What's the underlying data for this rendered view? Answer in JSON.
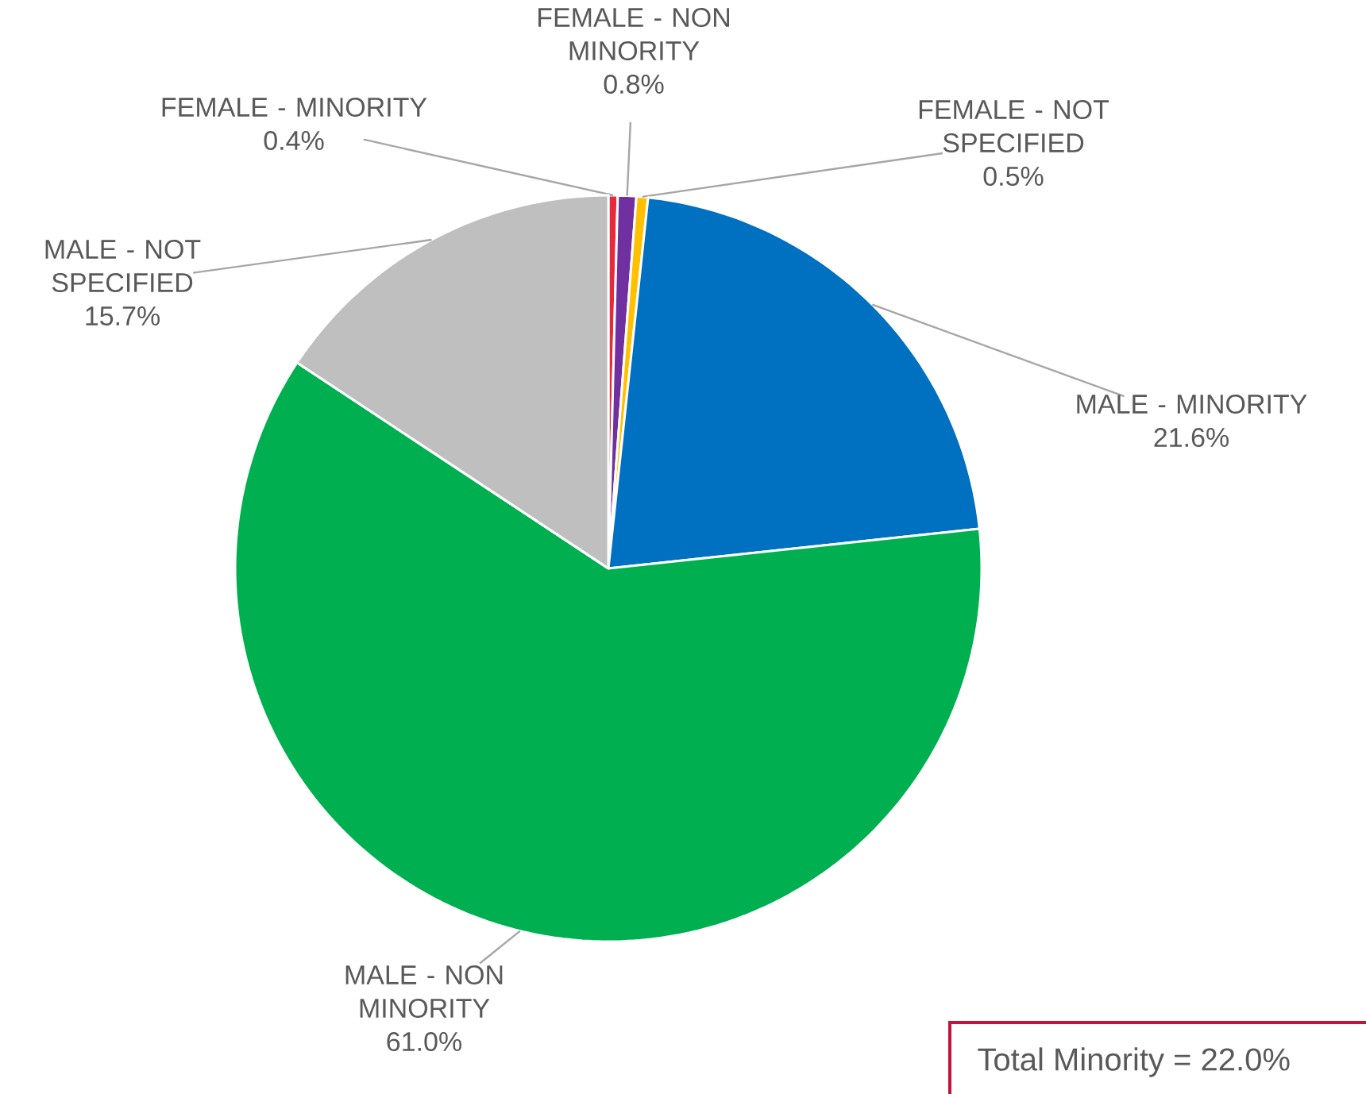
{
  "chart_data": {
    "type": "pie",
    "categories": [
      "FEMALE - MINORITY",
      "FEMALE - NON MINORITY",
      "FEMALE - NOT SPECIFIED",
      "MALE - MINORITY",
      "MALE - NON MINORITY",
      "MALE - NOT SPECIFIED"
    ],
    "values": [
      0.4,
      0.8,
      0.5,
      21.6,
      61.0,
      15.7
    ],
    "value_labels": [
      "0.4%",
      "0.8%",
      "0.5%",
      "21.6%",
      "61.0%",
      "15.7%"
    ],
    "colors": [
      "#e8293c",
      "#7030a0",
      "#ffc000",
      "#0070c0",
      "#00b050",
      "#bfbfbf"
    ],
    "annotations": [
      "Total Minority = 22.0%"
    ]
  }
}
